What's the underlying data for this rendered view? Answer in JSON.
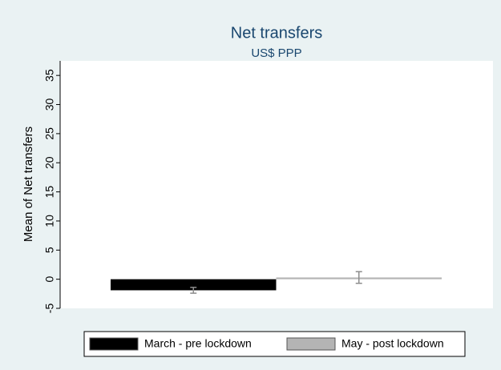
{
  "chart_data": {
    "type": "bar",
    "title": "Net transfers",
    "subtitle": "US$ PPP",
    "y_label": "Mean of Net transfers",
    "series": [
      {
        "name": "March - pre lockdown",
        "color": "#000000",
        "values": [
          -1.9
        ],
        "errors": [
          0.5
        ]
      },
      {
        "name": "May - post lockdown",
        "color": "#b4b4b4",
        "values": [
          0.3
        ],
        "errors": [
          1.0
        ]
      }
    ],
    "error_bar_color": "#8c8c8c",
    "ylim": [
      -5,
      37.5
    ],
    "yticks": [
      -5,
      0,
      5,
      10,
      15,
      20,
      25,
      30,
      35
    ],
    "grid": false
  }
}
